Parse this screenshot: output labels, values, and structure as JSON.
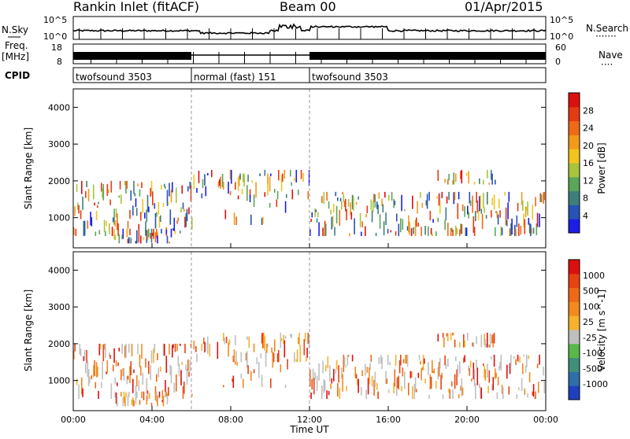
{
  "header": {
    "title": "Rankin Inlet (fitACF)",
    "beam": "Beam 00",
    "date": "01/Apr/2015"
  },
  "left_labels": {
    "nsky": "N.Sky",
    "freq_line1": "Freq.",
    "freq_line2": "[MHz]",
    "cpid": "CPID"
  },
  "right_labels": {
    "nsearch": "N.Search",
    "nsearch_dots": "·······",
    "nave": "Nave",
    "nave_dots": "····"
  },
  "noise_axis": {
    "top": "10^5",
    "bottom": "10^0"
  },
  "freq_axis": {
    "top": "18",
    "bottom": "8"
  },
  "nave_axis": {
    "top": "60",
    "bottom": "0"
  },
  "cpid_segments": [
    {
      "label": "twofsound 3503",
      "start_hour": 0
    },
    {
      "label": "normal (fast) 151",
      "start_hour": 6
    },
    {
      "label": "twofsound 3503",
      "start_hour": 12
    }
  ],
  "x_axis": {
    "title": "Time UT",
    "ticks": [
      "00:00",
      "04:00",
      "08:00",
      "12:00",
      "16:00",
      "20:00",
      "00:00"
    ],
    "range_hours": [
      0,
      24
    ]
  },
  "range_axis": {
    "label": "Slant Range [km]",
    "ticks": [
      "1000",
      "2000",
      "3000",
      "4000"
    ],
    "range_km": [
      180,
      4500
    ]
  },
  "chart_data": [
    {
      "type": "heatmap",
      "panel": "power",
      "xlabel": "",
      "ylabel": "Slant Range [km]",
      "colorbar": {
        "label": "Power [dB]",
        "ticks": [
          "4",
          "8",
          "12",
          "16",
          "20",
          "24",
          "28"
        ],
        "colors": [
          "#1d1de8",
          "#2653b5",
          "#3e7f7c",
          "#5aa55a",
          "#a8c43a",
          "#f2c51d",
          "#f39a1a",
          "#ee6a16",
          "#e63a12",
          "#dd1010"
        ]
      },
      "xlim_hours": [
        0,
        24
      ],
      "ylim_km": [
        180,
        4500
      ]
    },
    {
      "type": "heatmap",
      "panel": "velocity",
      "xlabel": "Time UT",
      "ylabel": "Slant Range [km]",
      "colorbar": {
        "label": "Velocity [m s^-1]",
        "ticks": [
          "1000",
          "500",
          "100",
          "25",
          "-25",
          "-100",
          "-500",
          "-1000"
        ],
        "colors": [
          "#1f3fbf",
          "#2f6ea8",
          "#3f8f7a",
          "#58b84a",
          "#bfbfbf",
          "#f6b22c",
          "#f28a1f",
          "#ee6a18",
          "#e84212",
          "#dd1010"
        ]
      },
      "xlim_hours": [
        0,
        24
      ],
      "ylim_km": [
        180,
        4500
      ]
    }
  ]
}
